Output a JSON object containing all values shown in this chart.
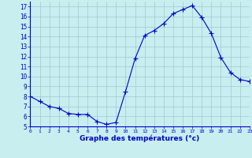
{
  "hours": [
    0,
    1,
    2,
    3,
    4,
    5,
    6,
    7,
    8,
    9,
    10,
    11,
    12,
    13,
    14,
    15,
    16,
    17,
    18,
    19,
    20,
    21,
    22,
    23
  ],
  "temperatures": [
    8.0,
    7.5,
    7.0,
    6.8,
    6.3,
    6.2,
    6.2,
    5.5,
    5.2,
    5.4,
    8.5,
    11.8,
    14.1,
    14.6,
    15.3,
    16.3,
    16.7,
    17.1,
    15.9,
    14.3,
    11.9,
    10.4,
    9.7,
    9.5
  ],
  "line_color": "#0000cc",
  "marker": "+",
  "marker_size": 4,
  "bg_color": "#c8eef0",
  "grid_color": "#a0c8d0",
  "xlabel": "Graphe des températures (°c)",
  "xlabel_color": "#0000cc",
  "tick_color": "#0000cc",
  "ylim": [
    5,
    17.5
  ],
  "xlim": [
    0,
    23
  ],
  "yticks": [
    5,
    6,
    7,
    8,
    9,
    10,
    11,
    12,
    13,
    14,
    15,
    16,
    17
  ],
  "xticks": [
    0,
    1,
    2,
    3,
    4,
    5,
    6,
    7,
    8,
    9,
    10,
    11,
    12,
    13,
    14,
    15,
    16,
    17,
    18,
    19,
    20,
    21,
    22,
    23
  ]
}
